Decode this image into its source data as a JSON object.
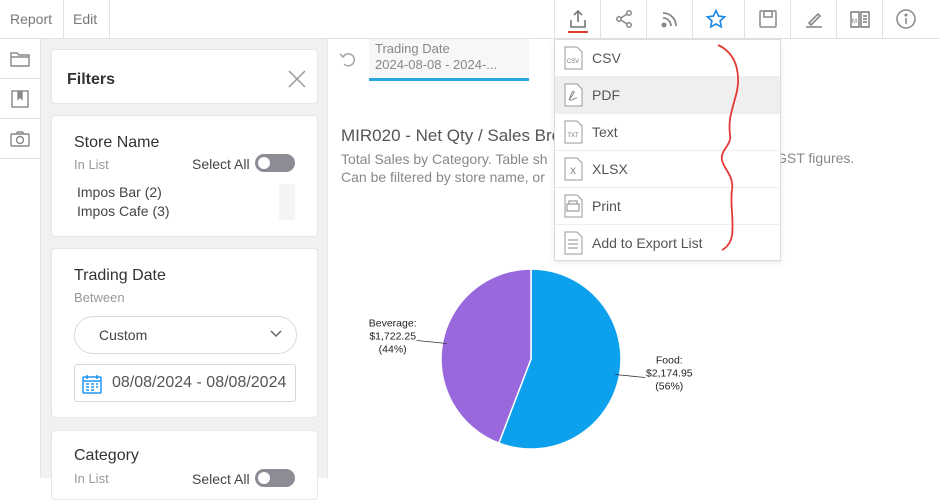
{
  "menu": {
    "report_label": "Report",
    "edit_label": "Edit"
  },
  "toolbar": {
    "tools": [
      "export-icon",
      "share-icon",
      "rss-icon",
      "star-icon",
      "save-icon",
      "sign-icon",
      "magazine-icon",
      "info-icon"
    ],
    "accent_color": "#e03a2e",
    "star_color": "#1e88e5"
  },
  "rail": {
    "items": [
      "folder-icon",
      "bookmark-icon",
      "camera-icon"
    ]
  },
  "filters": {
    "title": "Filters",
    "store": {
      "title": "Store Name",
      "operator": "In List",
      "select_all_label": "Select All",
      "values": [
        "Impos Bar (2)",
        "Impos Cafe (3)"
      ]
    },
    "trading_date": {
      "title": "Trading Date",
      "operator": "Between",
      "mode": "Custom",
      "range": "08/08/2024 - 08/08/2024"
    },
    "category": {
      "title": "Category",
      "operator": "In List",
      "select_all_label": "Select All"
    }
  },
  "report": {
    "tab_label": "Trading Date",
    "tab_value": "2024-08-08 - 2024-...",
    "title": "MIR020 - Net Qty / Sales Bre",
    "desc_line1": "Total Sales by Category. Table sh",
    "desc_line1_right": "GST figures.",
    "desc_line2": "Can be filtered by store name, or"
  },
  "export_menu": {
    "items": [
      {
        "icon": "csv-icon",
        "badge": "CSV",
        "label": "CSV"
      },
      {
        "icon": "pdf-icon",
        "badge": "",
        "label": "PDF"
      },
      {
        "icon": "txt-icon",
        "badge": "TXT",
        "label": "Text"
      },
      {
        "icon": "xlsx-icon",
        "badge": "X",
        "label": "XLSX"
      },
      {
        "icon": "print-icon",
        "badge": "",
        "label": "Print"
      },
      {
        "icon": "export-list-icon",
        "badge": "",
        "label": "Add to Export List"
      }
    ],
    "highlighted_index": 1
  },
  "chart_data": {
    "type": "pie",
    "title": "",
    "slices": [
      {
        "label": "Food:",
        "value_label": "$2,174.95",
        "pct_label": "(56%)",
        "value": 2174.95,
        "color": "#0da0ec"
      },
      {
        "label": "Beverage:",
        "value_label": "$1,722.25",
        "pct_label": "(44%)",
        "value": 1722.25,
        "color": "#9a68dd"
      }
    ]
  }
}
